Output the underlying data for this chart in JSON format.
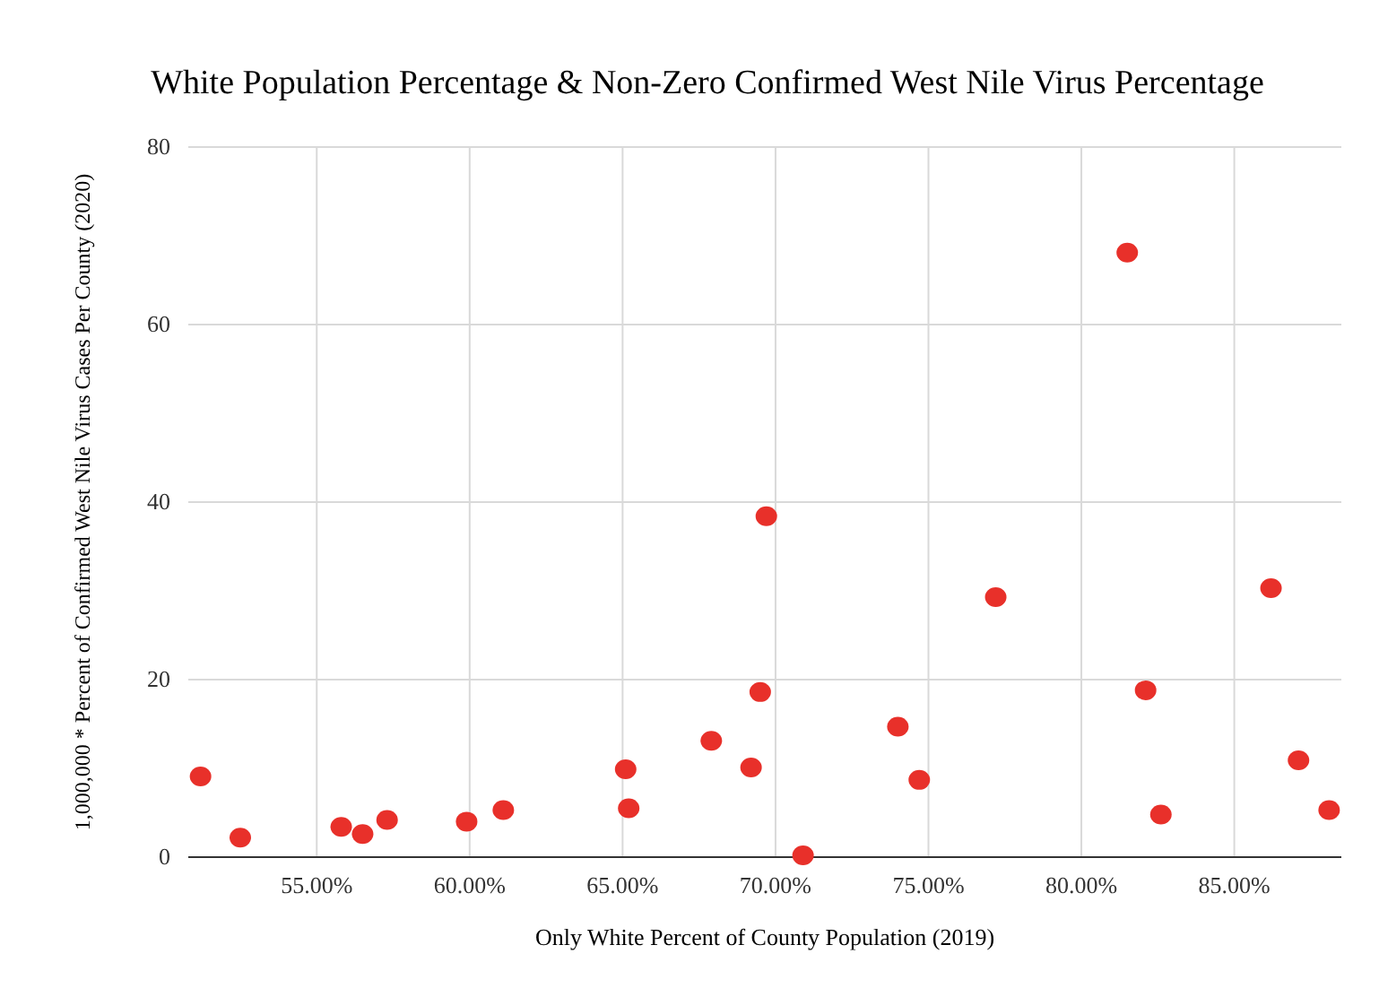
{
  "chart_data": {
    "type": "scatter",
    "title": "White Population Percentage & Non-Zero Confirmed West Nile Virus Percentage",
    "xlabel": "Only White Percent of County Population (2019)",
    "ylabel": "1,000,000 * Percent of Confirmed West Nile Virus Cases Per County (2020)",
    "x": [
      51.2,
      52.5,
      55.8,
      56.5,
      57.3,
      59.9,
      61.1,
      65.1,
      65.2,
      67.9,
      69.2,
      69.5,
      69.7,
      70.9,
      74.0,
      74.7,
      77.2,
      81.5,
      82.1,
      82.6,
      86.2,
      87.1,
      88.1
    ],
    "series": [
      {
        "color": "#e8302a",
        "values": [
          9.1,
          2.2,
          3.4,
          2.6,
          4.2,
          4.0,
          5.3,
          9.9,
          5.5,
          13.1,
          10.1,
          18.6,
          38.4,
          0.2,
          14.7,
          8.7,
          29.3,
          68.1,
          18.8,
          4.8,
          30.3,
          10.9,
          5.3
        ]
      }
    ],
    "xlim": [
      50.8,
      88.5
    ],
    "xticks": [
      {
        "value": 55,
        "label": "55.00%"
      },
      {
        "value": 60,
        "label": "60.00%"
      },
      {
        "value": 65,
        "label": "65.00%"
      },
      {
        "value": 70,
        "label": "70.00%"
      },
      {
        "value": 75,
        "label": "75.00%"
      },
      {
        "value": 80,
        "label": "80.00%"
      },
      {
        "value": 85,
        "label": "85.00%"
      }
    ],
    "ylim": [
      0,
      80
    ],
    "yticks": [
      0,
      20,
      40,
      60,
      80
    ],
    "grid": true,
    "marker": "circle"
  }
}
